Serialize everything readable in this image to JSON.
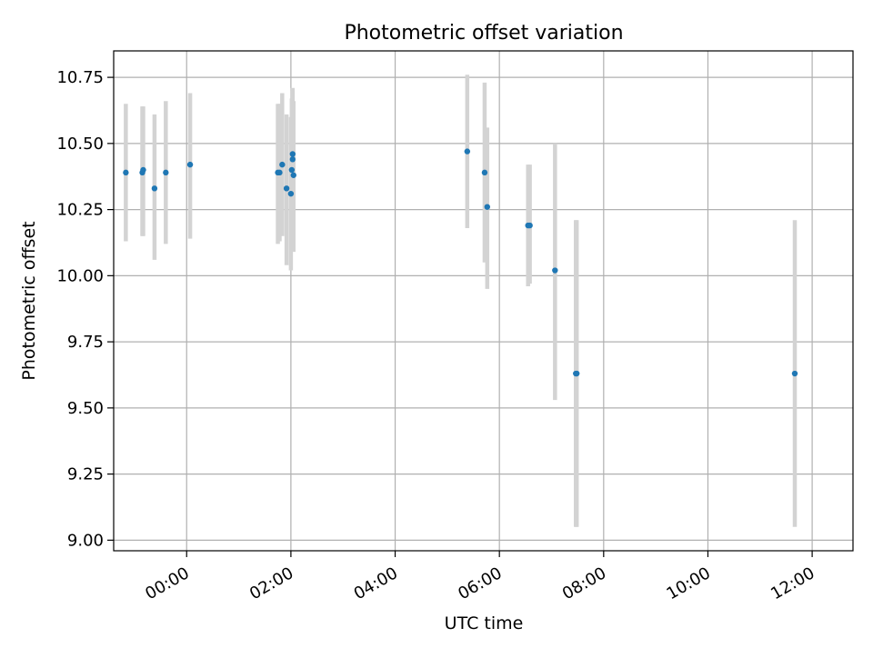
{
  "chart_data": {
    "type": "scatter",
    "title": "Photometric offset variation",
    "xlabel": "UTC time",
    "ylabel": "Photometric offset",
    "x_axis_kind": "time",
    "x_start": "23:15",
    "xlim": [
      "22:36",
      "12:47"
    ],
    "ylim": [
      8.96,
      10.85
    ],
    "x_ticks": [
      "00:00",
      "02:00",
      "04:00",
      "06:00",
      "08:00",
      "10:00",
      "12:00"
    ],
    "y_ticks": [
      "9.00",
      "9.25",
      "9.50",
      "9.75",
      "10.00",
      "10.25",
      "10.50",
      "10.75"
    ],
    "y_tick_values": [
      9.0,
      9.25,
      9.5,
      9.75,
      10.0,
      10.25,
      10.5,
      10.75
    ],
    "grid": true,
    "point_color": "#1f77b4",
    "errorbar_color": "#d3d3d3",
    "points": [
      {
        "t": "22:50",
        "y": 10.39,
        "lo": 10.13,
        "hi": 10.65
      },
      {
        "t": "23:09",
        "y": 10.39,
        "lo": 10.15,
        "hi": 10.64
      },
      {
        "t": "23:10",
        "y": 10.4,
        "lo": 10.15,
        "hi": 10.64
      },
      {
        "t": "23:23",
        "y": 10.33,
        "lo": 10.06,
        "hi": 10.61
      },
      {
        "t": "23:36",
        "y": 10.39,
        "lo": 10.12,
        "hi": 10.66
      },
      {
        "t": "00:04",
        "y": 10.42,
        "lo": 10.14,
        "hi": 10.69
      },
      {
        "t": "01:45",
        "y": 10.39,
        "lo": 10.12,
        "hi": 10.65
      },
      {
        "t": "01:47",
        "y": 10.39,
        "lo": 10.13,
        "hi": 10.65
      },
      {
        "t": "01:50",
        "y": 10.42,
        "lo": 10.15,
        "hi": 10.69
      },
      {
        "t": "01:55",
        "y": 10.33,
        "lo": 10.04,
        "hi": 10.61
      },
      {
        "t": "02:00",
        "y": 10.31,
        "lo": 10.02,
        "hi": 10.6
      },
      {
        "t": "02:01",
        "y": 10.4,
        "lo": 10.12,
        "hi": 10.67
      },
      {
        "t": "02:02",
        "y": 10.46,
        "lo": 10.18,
        "hi": 10.71
      },
      {
        "t": "02:02",
        "y": 10.44,
        "lo": 10.16,
        "hi": 10.7
      },
      {
        "t": "02:03",
        "y": 10.38,
        "lo": 10.09,
        "hi": 10.66
      },
      {
        "t": "05:23",
        "y": 10.47,
        "lo": 10.18,
        "hi": 10.76
      },
      {
        "t": "05:43",
        "y": 10.39,
        "lo": 10.05,
        "hi": 10.73
      },
      {
        "t": "05:46",
        "y": 10.26,
        "lo": 9.95,
        "hi": 10.56
      },
      {
        "t": "06:33",
        "y": 10.19,
        "lo": 9.96,
        "hi": 10.42
      },
      {
        "t": "06:35",
        "y": 10.19,
        "lo": 9.97,
        "hi": 10.42
      },
      {
        "t": "07:04",
        "y": 10.02,
        "lo": 9.53,
        "hi": 10.5
      },
      {
        "t": "07:28",
        "y": 9.63,
        "lo": 9.05,
        "hi": 10.21
      },
      {
        "t": "07:29",
        "y": 9.63,
        "lo": 9.05,
        "hi": 10.21
      },
      {
        "t": "11:40",
        "y": 9.63,
        "lo": 9.05,
        "hi": 10.21
      }
    ]
  }
}
